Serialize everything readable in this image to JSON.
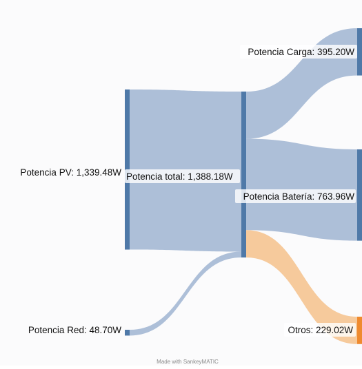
{
  "diagram": {
    "type": "sankey",
    "nodes": [
      {
        "id": "pv",
        "label": "Potencia PV: 1,339.48W",
        "value": 1339.48,
        "color": "#4f79a8"
      },
      {
        "id": "red",
        "label": "Potencia Red: 48.70W",
        "value": 48.7,
        "color": "#4f79a8"
      },
      {
        "id": "total",
        "label": "Potencia total: 1,388.18W",
        "value": 1388.18,
        "color": "#4f79a8"
      },
      {
        "id": "carga",
        "label": "Potencia Carga: 395.20W",
        "value": 395.2,
        "color": "#4f79a8"
      },
      {
        "id": "bateria",
        "label": "Potencia Batería: 763.96W",
        "value": 763.96,
        "color": "#4f79a8"
      },
      {
        "id": "otros",
        "label": "Otros: 229.02W",
        "value": 229.02,
        "color": "#ef8a2e"
      }
    ],
    "flows": [
      {
        "from": "pv",
        "to": "total",
        "value": 1339.48,
        "color": "#a9bcd6"
      },
      {
        "from": "red",
        "to": "total",
        "value": 48.7,
        "color": "#a9bcd6"
      },
      {
        "from": "total",
        "to": "carga",
        "value": 395.2,
        "color": "#a9bcd6"
      },
      {
        "from": "total",
        "to": "bateria",
        "value": 763.96,
        "color": "#a9bcd6"
      },
      {
        "from": "total",
        "to": "otros",
        "value": 229.02,
        "color": "#f6c797"
      }
    ]
  },
  "footer": {
    "text": "Made with SankeyMATIC"
  }
}
